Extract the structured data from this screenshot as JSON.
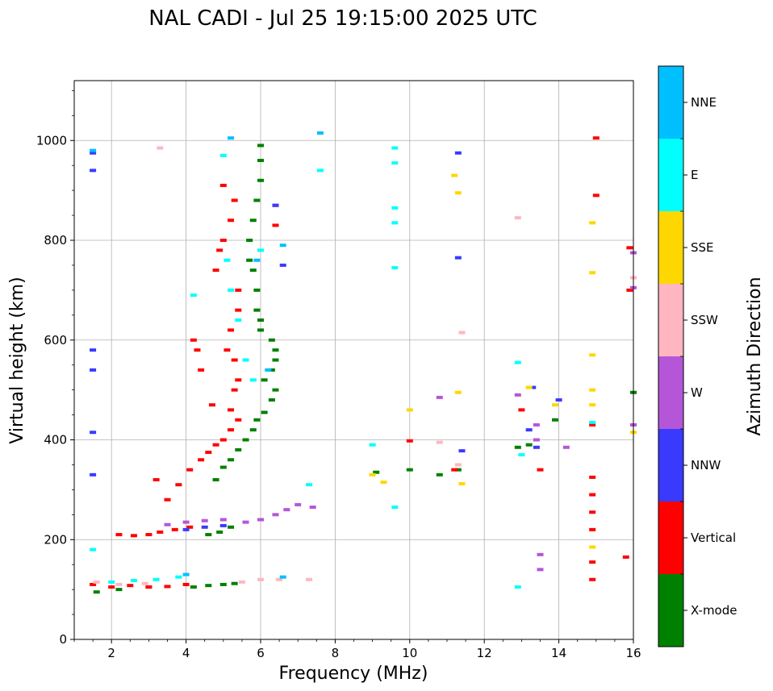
{
  "chart_data": {
    "type": "scatter",
    "title": "NAL CADI - Jul 25 19:15:00 2025 UTC",
    "xlabel": "Frequency (MHz)",
    "ylabel": "Virtual height (km)",
    "xlim": [
      1,
      16
    ],
    "ylim": [
      0,
      1120
    ],
    "xticks": [
      2,
      4,
      6,
      8,
      10,
      12,
      14,
      16
    ],
    "yticks": [
      0,
      200,
      400,
      600,
      800,
      1000
    ],
    "grid": true,
    "colorbar": {
      "label": "Azimuth Direction",
      "categories": [
        {
          "name": "X-mode",
          "color": "#008000"
        },
        {
          "name": "Vertical",
          "color": "#ff0000"
        },
        {
          "name": "NNW",
          "color": "#3a3aff"
        },
        {
          "name": "W",
          "color": "#b556d8"
        },
        {
          "name": "SSW",
          "color": "#ffb6c1"
        },
        {
          "name": "SSE",
          "color": "#ffd700"
        },
        {
          "name": "E",
          "color": "#00ffff"
        },
        {
          "name": "NNE",
          "color": "#00bfff"
        }
      ]
    },
    "series": [
      {
        "name": "X-mode",
        "points": [
          [
            1.6,
            95
          ],
          [
            2.2,
            100
          ],
          [
            3.0,
            105
          ],
          [
            4.2,
            105
          ],
          [
            4.6,
            108
          ],
          [
            5.0,
            110
          ],
          [
            5.3,
            112
          ],
          [
            4.6,
            210
          ],
          [
            4.9,
            215
          ],
          [
            5.2,
            225
          ],
          [
            4.8,
            320
          ],
          [
            5.0,
            345
          ],
          [
            5.2,
            360
          ],
          [
            5.4,
            380
          ],
          [
            5.6,
            400
          ],
          [
            5.8,
            420
          ],
          [
            5.9,
            440
          ],
          [
            6.1,
            455
          ],
          [
            6.3,
            480
          ],
          [
            6.4,
            500
          ],
          [
            6.1,
            520
          ],
          [
            6.3,
            540
          ],
          [
            6.4,
            560
          ],
          [
            6.4,
            580
          ],
          [
            6.3,
            600
          ],
          [
            6.0,
            620
          ],
          [
            6.0,
            640
          ],
          [
            5.9,
            660
          ],
          [
            5.9,
            700
          ],
          [
            5.8,
            740
          ],
          [
            5.7,
            760
          ],
          [
            5.7,
            800
          ],
          [
            5.8,
            840
          ],
          [
            5.9,
            880
          ],
          [
            6.0,
            920
          ],
          [
            6.0,
            960
          ],
          [
            6.0,
            990
          ],
          [
            9.1,
            335
          ],
          [
            10.0,
            340
          ],
          [
            10.8,
            330
          ],
          [
            11.3,
            340
          ],
          [
            12.9,
            385
          ],
          [
            13.2,
            390
          ],
          [
            13.9,
            440
          ],
          [
            16.0,
            495
          ]
        ]
      },
      {
        "name": "Vertical",
        "points": [
          [
            1.5,
            110
          ],
          [
            2.0,
            105
          ],
          [
            2.5,
            108
          ],
          [
            3.0,
            105
          ],
          [
            3.5,
            106
          ],
          [
            4.0,
            110
          ],
          [
            2.2,
            210
          ],
          [
            2.6,
            208
          ],
          [
            3.0,
            210
          ],
          [
            3.3,
            215
          ],
          [
            3.7,
            220
          ],
          [
            4.1,
            225
          ],
          [
            3.2,
            320
          ],
          [
            3.5,
            280
          ],
          [
            3.8,
            310
          ],
          [
            4.1,
            340
          ],
          [
            4.4,
            360
          ],
          [
            4.6,
            375
          ],
          [
            4.8,
            390
          ],
          [
            5.0,
            400
          ],
          [
            5.2,
            420
          ],
          [
            5.4,
            440
          ],
          [
            5.2,
            460
          ],
          [
            5.3,
            500
          ],
          [
            5.4,
            520
          ],
          [
            5.3,
            560
          ],
          [
            5.1,
            580
          ],
          [
            5.2,
            620
          ],
          [
            5.4,
            660
          ],
          [
            5.4,
            700
          ],
          [
            4.8,
            740
          ],
          [
            4.9,
            780
          ],
          [
            5.0,
            800
          ],
          [
            5.2,
            840
          ],
          [
            5.3,
            880
          ],
          [
            5.0,
            910
          ],
          [
            4.3,
            580
          ],
          [
            4.2,
            600
          ],
          [
            4.7,
            470
          ],
          [
            4.4,
            540
          ],
          [
            6.4,
            830
          ],
          [
            6.4,
            870
          ],
          [
            10.0,
            398
          ],
          [
            11.2,
            340
          ],
          [
            13.0,
            460
          ],
          [
            13.5,
            340
          ],
          [
            14.9,
            120
          ],
          [
            14.9,
            155
          ],
          [
            14.9,
            220
          ],
          [
            14.9,
            255
          ],
          [
            14.9,
            290
          ],
          [
            14.9,
            325
          ],
          [
            14.9,
            430
          ],
          [
            15.0,
            890
          ],
          [
            15.0,
            1005
          ],
          [
            15.8,
            165
          ],
          [
            15.9,
            700
          ],
          [
            15.9,
            785
          ]
        ]
      },
      {
        "name": "NNW",
        "points": [
          [
            1.5,
            975
          ],
          [
            1.5,
            940
          ],
          [
            1.5,
            580
          ],
          [
            1.5,
            540
          ],
          [
            1.5,
            415
          ],
          [
            1.5,
            330
          ],
          [
            4.0,
            220
          ],
          [
            4.5,
            225
          ],
          [
            5.0,
            228
          ],
          [
            6.4,
            870
          ],
          [
            6.6,
            750
          ],
          [
            11.3,
            765
          ],
          [
            11.3,
            975
          ],
          [
            11.4,
            378
          ],
          [
            13.2,
            420
          ],
          [
            13.3,
            505
          ],
          [
            13.4,
            385
          ],
          [
            14.0,
            480
          ]
        ]
      },
      {
        "name": "W",
        "points": [
          [
            3.5,
            230
          ],
          [
            4.0,
            235
          ],
          [
            4.5,
            238
          ],
          [
            5.0,
            240
          ],
          [
            5.6,
            235
          ],
          [
            6.0,
            240
          ],
          [
            6.4,
            250
          ],
          [
            6.7,
            260
          ],
          [
            7.0,
            270
          ],
          [
            7.4,
            265
          ],
          [
            10.8,
            485
          ],
          [
            12.9,
            490
          ],
          [
            13.4,
            400
          ],
          [
            13.4,
            430
          ],
          [
            13.5,
            170
          ],
          [
            13.5,
            140
          ],
          [
            14.2,
            385
          ],
          [
            16.0,
            775
          ],
          [
            16.0,
            430
          ],
          [
            16.0,
            705
          ]
        ]
      },
      {
        "name": "SSW",
        "points": [
          [
            1.6,
            115
          ],
          [
            2.2,
            110
          ],
          [
            2.9,
            112
          ],
          [
            3.3,
            985
          ],
          [
            5.5,
            115
          ],
          [
            6.0,
            120
          ],
          [
            6.5,
            120
          ],
          [
            7.3,
            120
          ],
          [
            10.8,
            395
          ],
          [
            11.3,
            350
          ],
          [
            11.4,
            615
          ],
          [
            12.9,
            845
          ],
          [
            16.0,
            725
          ]
        ]
      },
      {
        "name": "SSE",
        "points": [
          [
            9.0,
            330
          ],
          [
            9.3,
            315
          ],
          [
            10.0,
            460
          ],
          [
            11.2,
            930
          ],
          [
            11.3,
            895
          ],
          [
            11.3,
            495
          ],
          [
            11.4,
            312
          ],
          [
            13.2,
            505
          ],
          [
            13.9,
            470
          ],
          [
            14.9,
            835
          ],
          [
            14.9,
            735
          ],
          [
            14.9,
            570
          ],
          [
            14.9,
            500
          ],
          [
            14.9,
            470
          ],
          [
            14.9,
            185
          ],
          [
            16.0,
            415
          ]
        ]
      },
      {
        "name": "E",
        "points": [
          [
            1.5,
            180
          ],
          [
            2.0,
            115
          ],
          [
            2.6,
            118
          ],
          [
            3.2,
            120
          ],
          [
            3.8,
            125
          ],
          [
            4.2,
            690
          ],
          [
            5.0,
            970
          ],
          [
            5.1,
            760
          ],
          [
            5.2,
            700
          ],
          [
            5.4,
            640
          ],
          [
            5.6,
            560
          ],
          [
            5.8,
            520
          ],
          [
            6.0,
            780
          ],
          [
            7.3,
            310
          ],
          [
            7.6,
            940
          ],
          [
            9.0,
            390
          ],
          [
            9.6,
            985
          ],
          [
            9.6,
            955
          ],
          [
            9.6,
            865
          ],
          [
            9.6,
            835
          ],
          [
            9.6,
            745
          ],
          [
            9.6,
            265
          ],
          [
            12.9,
            555
          ],
          [
            12.9,
            105
          ],
          [
            13.0,
            370
          ],
          [
            14.9,
            435
          ]
        ]
      },
      {
        "name": "NNE",
        "points": [
          [
            1.5,
            980
          ],
          [
            4.0,
            130
          ],
          [
            5.2,
            1005
          ],
          [
            5.9,
            760
          ],
          [
            6.2,
            540
          ],
          [
            6.6,
            790
          ],
          [
            6.6,
            125
          ],
          [
            7.6,
            1015
          ]
        ]
      }
    ]
  }
}
